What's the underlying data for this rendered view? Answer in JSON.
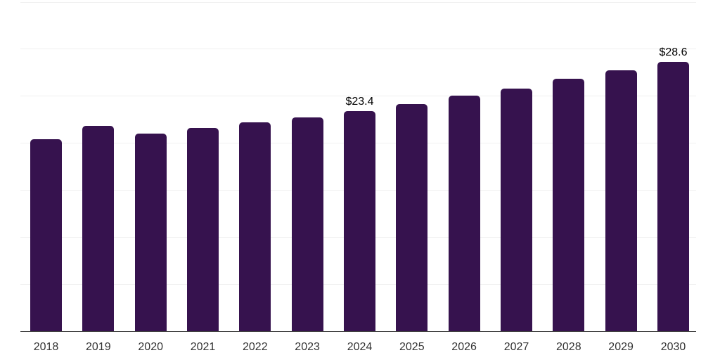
{
  "chart_data": {
    "type": "bar",
    "title": "",
    "xlabel": "",
    "ylabel": "",
    "categories": [
      "2018",
      "2019",
      "2020",
      "2021",
      "2022",
      "2023",
      "2024",
      "2025",
      "2026",
      "2027",
      "2028",
      "2029",
      "2030"
    ],
    "values": [
      20.4,
      21.8,
      21.0,
      21.6,
      22.2,
      22.7,
      23.4,
      24.1,
      25.0,
      25.8,
      26.8,
      27.7,
      28.6
    ],
    "data_labels": {
      "2024": "$23.4",
      "2030": "$28.6"
    },
    "ylim": [
      0,
      35
    ],
    "grid_step": 5,
    "grid": true,
    "y_tick_labels_visible": false,
    "legend_position": "none",
    "colors": {
      "bar": "#36124e",
      "gridline": "#f0f0f0",
      "axis_line": "#404040",
      "tick_label": "#333333",
      "data_label": "#000000",
      "background": "#ffffff"
    }
  }
}
